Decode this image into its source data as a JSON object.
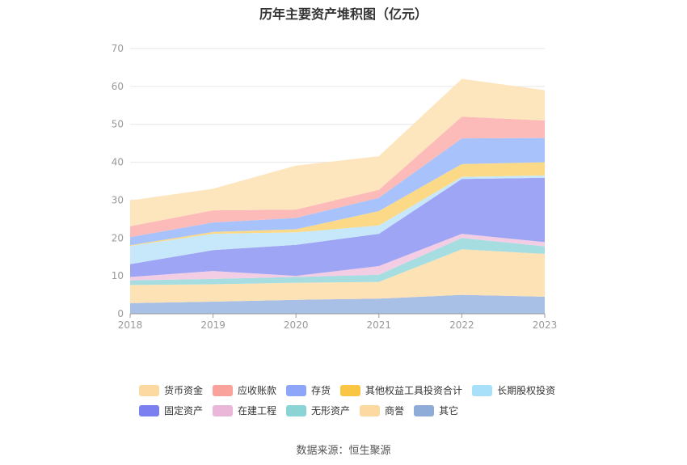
{
  "chart_data": {
    "type": "area",
    "stacked": true,
    "title": "历年主要资产堆积图（亿元）",
    "xlabel": "",
    "ylabel": "",
    "categories": [
      "2018",
      "2019",
      "2020",
      "2021",
      "2022",
      "2023"
    ],
    "ylim": [
      0,
      70
    ],
    "yticks": [
      0,
      10,
      20,
      30,
      40,
      50,
      60,
      70
    ],
    "grid": true,
    "legend_position": "bottom",
    "series": [
      {
        "name": "其它",
        "color": "#a9c0e6",
        "values": [
          2.8,
          3.2,
          3.7,
          4.0,
          5.0,
          4.5
        ]
      },
      {
        "name": "商誉",
        "color": "#fde2b6",
        "values": [
          4.8,
          4.6,
          4.5,
          4.4,
          12.0,
          11.3
        ]
      },
      {
        "name": "无形资产",
        "color": "#a6dde0",
        "values": [
          1.2,
          1.4,
          1.5,
          1.9,
          3.0,
          2.0
        ]
      },
      {
        "name": "在建工程",
        "color": "#f2cde4",
        "values": [
          0.9,
          2.1,
          0.3,
          2.3,
          1.1,
          1.1
        ]
      },
      {
        "name": "固定资产",
        "color": "#9fa5f5",
        "values": [
          3.4,
          5.5,
          8.2,
          8.5,
          14.5,
          17.0
        ]
      },
      {
        "name": "长期股权投资",
        "color": "#c7e8fb",
        "values": [
          4.8,
          4.3,
          3.3,
          2.2,
          0.5,
          0.6
        ]
      },
      {
        "name": "其他权益工具投资合计",
        "color": "#fcd986",
        "values": [
          0.2,
          0.5,
          0.8,
          3.8,
          3.4,
          3.5
        ]
      },
      {
        "name": "存货",
        "color": "#a8c3fb",
        "values": [
          2.1,
          2.5,
          3.0,
          3.5,
          6.8,
          6.4
        ]
      },
      {
        "name": "应收账款",
        "color": "#fcbab8",
        "values": [
          2.9,
          3.2,
          2.2,
          2.1,
          5.7,
          4.6
        ]
      },
      {
        "name": "货币资金",
        "color": "#fde5bd",
        "values": [
          6.8,
          5.7,
          11.6,
          8.9,
          10.0,
          8.0
        ]
      }
    ],
    "legend": [
      {
        "name": "货币资金",
        "color": "#fcd9a1"
      },
      {
        "name": "应收账款",
        "color": "#f8a29b"
      },
      {
        "name": "存货",
        "color": "#8ea6f9"
      },
      {
        "name": "其他权益工具投资合计",
        "color": "#fbc544"
      },
      {
        "name": "长期股权投资",
        "color": "#a8dff9"
      },
      {
        "name": "固定资产",
        "color": "#7b7ff0"
      },
      {
        "name": "在建工程",
        "color": "#ebb7d8"
      },
      {
        "name": "无形资产",
        "color": "#8ad4d5"
      },
      {
        "name": "商誉",
        "color": "#fcd9a1"
      },
      {
        "name": "其它",
        "color": "#8fabd8"
      }
    ]
  },
  "source_text": "数据来源：恒生聚源"
}
